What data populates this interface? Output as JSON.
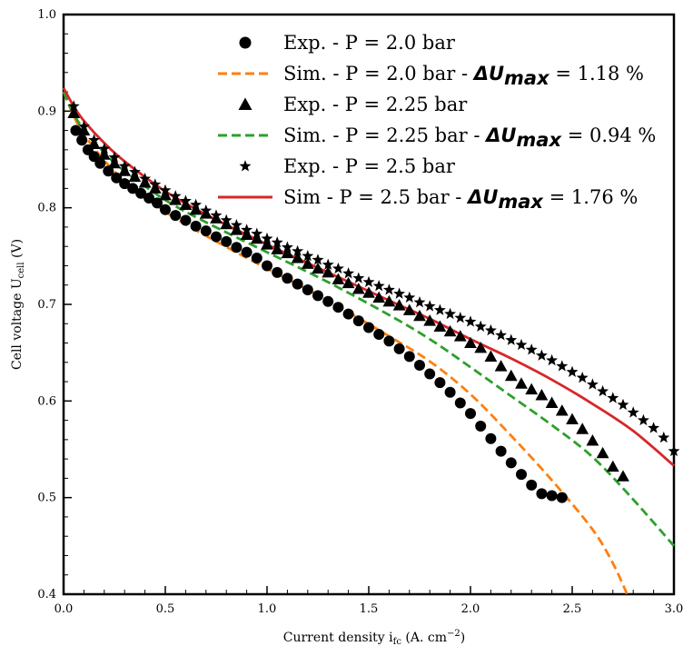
{
  "chart_data": {
    "type": "scatter",
    "title": "",
    "xlabel": "Current density i",
    "xlabel_sub": "fc",
    "xlabel_unit_prefix": " (A. cm",
    "xlabel_unit_sup": "−2",
    "xlabel_unit_suffix": ")",
    "ylabel": "Cell voltage U",
    "ylabel_sub": "cell",
    "ylabel_unit": " (V)",
    "xlim": [
      0,
      3.0
    ],
    "ylim": [
      0.4,
      1.0
    ],
    "xticks": [
      "0.0",
      "0.5",
      "1.0",
      "1.5",
      "2.0",
      "2.5",
      "3.0"
    ],
    "yticks": [
      "0.4",
      "0.5",
      "0.6",
      "0.7",
      "0.8",
      "0.9",
      "1.0"
    ],
    "grid": false,
    "legend_position": "top-right",
    "legend": [
      {
        "kind": "marker",
        "marker": "circle",
        "color": "#000000",
        "label": "Exp. - P = 2.0 bar"
      },
      {
        "kind": "line",
        "color": "#ff7f0e",
        "dash": "dashed",
        "label_prefix": "Sim. - P = 2.0 bar - ",
        "label_math": "ΔU",
        "label_math_sub": "max",
        "label_suffix": " = 1.18 %"
      },
      {
        "kind": "marker",
        "marker": "triangle",
        "color": "#000000",
        "label": "Exp. - P = 2.25 bar"
      },
      {
        "kind": "line",
        "color": "#2ca02c",
        "dash": "dashed",
        "label_prefix": "Sim. - P = 2.25 bar - ",
        "label_math": "ΔU",
        "label_math_sub": "max",
        "label_suffix": " = 0.94 %"
      },
      {
        "kind": "marker",
        "marker": "star",
        "color": "#000000",
        "label": "Exp. - P = 2.5 bar"
      },
      {
        "kind": "line",
        "color": "#d62728",
        "dash": "solid",
        "label_prefix": "Sim - P = 2.5 bar - ",
        "label_math": "ΔU",
        "label_math_sub": "max",
        "label_suffix": " = 1.76 %"
      }
    ],
    "series": [
      {
        "name": "Sim. - P = 2.0 bar",
        "type": "line",
        "color": "#ff7f0e",
        "dash": "dashed",
        "x": [
          0.0,
          0.05,
          0.1,
          0.2,
          0.3,
          0.5,
          0.7,
          1.0,
          1.3,
          1.6,
          1.8,
          2.0,
          2.2,
          2.4,
          2.6,
          2.7,
          2.77
        ],
        "y": [
          0.92,
          0.895,
          0.876,
          0.849,
          0.828,
          0.796,
          0.771,
          0.737,
          0.704,
          0.667,
          0.641,
          0.607,
          0.564,
          0.518,
          0.467,
          0.432,
          0.4
        ]
      },
      {
        "name": "Sim. - P = 2.25 bar",
        "type": "line",
        "color": "#2ca02c",
        "dash": "dashed",
        "x": [
          0.0,
          0.05,
          0.1,
          0.2,
          0.3,
          0.5,
          0.7,
          1.0,
          1.3,
          1.6,
          1.8,
          2.0,
          2.2,
          2.4,
          2.6,
          2.8,
          3.0
        ],
        "y": [
          0.92,
          0.897,
          0.881,
          0.857,
          0.838,
          0.808,
          0.785,
          0.754,
          0.723,
          0.689,
          0.664,
          0.635,
          0.605,
          0.575,
          0.542,
          0.498,
          0.45
        ]
      },
      {
        "name": "Sim - P = 2.5 bar",
        "type": "line",
        "color": "#d62728",
        "dash": "solid",
        "x": [
          0.0,
          0.05,
          0.1,
          0.2,
          0.3,
          0.5,
          0.7,
          1.0,
          1.3,
          1.6,
          1.8,
          2.0,
          2.2,
          2.4,
          2.6,
          2.8,
          3.0
        ],
        "y": [
          0.924,
          0.905,
          0.89,
          0.867,
          0.848,
          0.817,
          0.793,
          0.762,
          0.733,
          0.704,
          0.685,
          0.664,
          0.644,
          0.622,
          0.597,
          0.569,
          0.533
        ]
      },
      {
        "name": "Exp. - P = 2.0 bar",
        "type": "scatter",
        "marker": "circle",
        "color": "#000000",
        "x": [
          0.06,
          0.09,
          0.12,
          0.15,
          0.18,
          0.22,
          0.26,
          0.3,
          0.34,
          0.38,
          0.42,
          0.46,
          0.5,
          0.55,
          0.6,
          0.65,
          0.7,
          0.75,
          0.8,
          0.85,
          0.9,
          0.95,
          1.0,
          1.05,
          1.1,
          1.15,
          1.2,
          1.25,
          1.3,
          1.35,
          1.4,
          1.45,
          1.5,
          1.55,
          1.6,
          1.65,
          1.7,
          1.75,
          1.8,
          1.85,
          1.9,
          1.95,
          2.0,
          2.05,
          2.1,
          2.15,
          2.2,
          2.25,
          2.3,
          2.35,
          2.4,
          2.45
        ],
        "y": [
          0.88,
          0.87,
          0.86,
          0.853,
          0.846,
          0.838,
          0.831,
          0.825,
          0.82,
          0.815,
          0.81,
          0.805,
          0.798,
          0.792,
          0.787,
          0.781,
          0.776,
          0.77,
          0.765,
          0.759,
          0.754,
          0.748,
          0.74,
          0.733,
          0.727,
          0.721,
          0.715,
          0.709,
          0.703,
          0.697,
          0.69,
          0.683,
          0.676,
          0.669,
          0.662,
          0.654,
          0.646,
          0.637,
          0.628,
          0.619,
          0.609,
          0.598,
          0.587,
          0.574,
          0.561,
          0.548,
          0.536,
          0.524,
          0.513,
          0.504,
          0.502,
          0.5
        ]
      },
      {
        "name": "Exp. - P = 2.25 bar",
        "type": "scatter",
        "marker": "triangle",
        "color": "#000000",
        "x": [
          0.05,
          0.1,
          0.15,
          0.2,
          0.25,
          0.3,
          0.35,
          0.4,
          0.45,
          0.5,
          0.55,
          0.6,
          0.65,
          0.7,
          0.75,
          0.8,
          0.85,
          0.9,
          0.95,
          1.0,
          1.05,
          1.1,
          1.15,
          1.2,
          1.25,
          1.3,
          1.35,
          1.4,
          1.45,
          1.5,
          1.55,
          1.6,
          1.65,
          1.7,
          1.75,
          1.8,
          1.85,
          1.9,
          1.95,
          2.0,
          2.05,
          2.1,
          2.15,
          2.2,
          2.25,
          2.3,
          2.35,
          2.4,
          2.45,
          2.5,
          2.55,
          2.6,
          2.65,
          2.7,
          2.75
        ],
        "y": [
          0.898,
          0.88,
          0.866,
          0.855,
          0.846,
          0.838,
          0.832,
          0.826,
          0.82,
          0.813,
          0.808,
          0.803,
          0.798,
          0.794,
          0.789,
          0.783,
          0.777,
          0.772,
          0.768,
          0.762,
          0.757,
          0.753,
          0.748,
          0.742,
          0.737,
          0.733,
          0.726,
          0.722,
          0.716,
          0.712,
          0.707,
          0.703,
          0.699,
          0.694,
          0.688,
          0.683,
          0.677,
          0.672,
          0.667,
          0.66,
          0.655,
          0.646,
          0.636,
          0.626,
          0.618,
          0.612,
          0.606,
          0.598,
          0.59,
          0.581,
          0.571,
          0.559,
          0.546,
          0.532,
          0.522
        ]
      },
      {
        "name": "Exp. - P = 2.5 bar",
        "type": "scatter",
        "marker": "star",
        "color": "#000000",
        "x": [
          0.05,
          0.1,
          0.15,
          0.2,
          0.25,
          0.3,
          0.35,
          0.4,
          0.45,
          0.5,
          0.55,
          0.6,
          0.65,
          0.7,
          0.75,
          0.8,
          0.85,
          0.9,
          0.95,
          1.0,
          1.05,
          1.1,
          1.15,
          1.2,
          1.25,
          1.3,
          1.35,
          1.4,
          1.45,
          1.5,
          1.55,
          1.6,
          1.65,
          1.7,
          1.75,
          1.8,
          1.85,
          1.9,
          1.95,
          2.0,
          2.05,
          2.1,
          2.15,
          2.2,
          2.25,
          2.3,
          2.35,
          2.4,
          2.45,
          2.5,
          2.55,
          2.6,
          2.65,
          2.7,
          2.75,
          2.8,
          2.85,
          2.9,
          2.95,
          3.0
        ],
        "y": [
          0.905,
          0.884,
          0.87,
          0.861,
          0.852,
          0.843,
          0.837,
          0.83,
          0.824,
          0.818,
          0.812,
          0.807,
          0.803,
          0.797,
          0.792,
          0.787,
          0.782,
          0.777,
          0.773,
          0.768,
          0.764,
          0.759,
          0.755,
          0.75,
          0.746,
          0.741,
          0.737,
          0.732,
          0.727,
          0.723,
          0.719,
          0.715,
          0.711,
          0.707,
          0.702,
          0.698,
          0.694,
          0.69,
          0.686,
          0.682,
          0.677,
          0.673,
          0.668,
          0.663,
          0.658,
          0.653,
          0.647,
          0.642,
          0.636,
          0.63,
          0.624,
          0.617,
          0.61,
          0.603,
          0.596,
          0.588,
          0.58,
          0.572,
          0.562,
          0.548
        ]
      }
    ]
  }
}
